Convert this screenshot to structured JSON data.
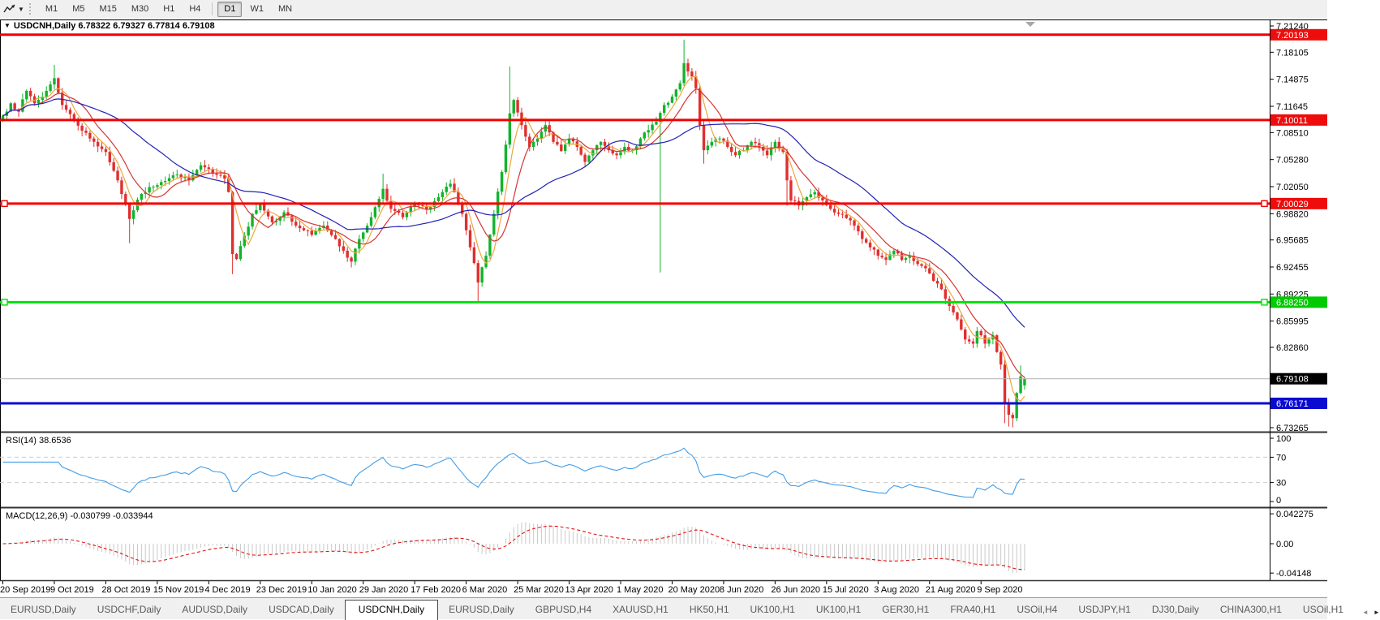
{
  "toolbar": {
    "tool_icon": "chart-line-cursor",
    "timeframes": [
      {
        "label": "M1",
        "active": false
      },
      {
        "label": "M5",
        "active": false
      },
      {
        "label": "M15",
        "active": false
      },
      {
        "label": "M30",
        "active": false
      },
      {
        "label": "H1",
        "active": false
      },
      {
        "label": "H4",
        "active": false
      },
      {
        "label": "D1",
        "active": true
      },
      {
        "label": "W1",
        "active": false
      },
      {
        "label": "MN",
        "active": false
      }
    ]
  },
  "chart_title": {
    "display": "USDCNH,Daily  6.78322 6.79327 6.77814 6.79108",
    "symbol": "USDCNH",
    "period": "Daily",
    "open": "6.78322",
    "high": "6.79327",
    "low": "6.77814",
    "close": "6.79108"
  },
  "price_axis": {
    "ticks": [
      {
        "price": 7.2124,
        "label": "7.21240"
      },
      {
        "price": 7.18105,
        "label": "7.18105"
      },
      {
        "price": 7.14875,
        "label": "7.14875"
      },
      {
        "price": 7.11645,
        "label": "7.11645"
      },
      {
        "price": 7.0851,
        "label": "7.08510"
      },
      {
        "price": 7.0528,
        "label": "7.05280"
      },
      {
        "price": 7.0205,
        "label": "7.02050"
      },
      {
        "price": 6.9882,
        "label": "6.98820"
      },
      {
        "price": 6.95685,
        "label": "6.95685"
      },
      {
        "price": 6.92455,
        "label": "6.92455"
      },
      {
        "price": 6.89225,
        "label": "6.89225"
      },
      {
        "price": 6.85995,
        "label": "6.85995"
      },
      {
        "price": 6.8286,
        "label": "6.82860"
      },
      {
        "price": 6.73265,
        "label": "6.73265"
      }
    ],
    "boxes": [
      {
        "label": "7.20193",
        "price": 7.20193,
        "bg": "#ee0c0c",
        "fg": "#ffffff"
      },
      {
        "label": "7.10011",
        "price": 7.10011,
        "bg": "#ee0c0c",
        "fg": "#ffffff"
      },
      {
        "label": "7.00029",
        "price": 7.00029,
        "bg": "#ee0c0c",
        "fg": "#ffffff"
      },
      {
        "label": "6.88250",
        "price": 6.8825,
        "bg": "#00ca00",
        "fg": "#ffffff"
      },
      {
        "label": "6.79108",
        "price": 6.79108,
        "bg": "#000000",
        "fg": "#ffffff"
      },
      {
        "label": "6.76171",
        "price": 6.76171,
        "bg": "#0b0bd0",
        "fg": "#ffffff"
      }
    ]
  },
  "hlines": [
    {
      "price": 7.20193,
      "color": "#f20000",
      "width": 3,
      "marker": false
    },
    {
      "price": 7.10011,
      "color": "#f20000",
      "width": 3,
      "marker": false
    },
    {
      "price": 7.00029,
      "color": "#f20000",
      "width": 3,
      "marker": true
    },
    {
      "price": 6.8825,
      "color": "#00e20a",
      "width": 3,
      "marker": true
    },
    {
      "price": 6.76171,
      "color": "#0b0bd0",
      "width": 3,
      "marker": false
    }
  ],
  "current_price_line": {
    "price": 6.79108,
    "color": "#b4b4b4"
  },
  "indicators": {
    "rsi": {
      "display": "RSI(14) 38.6536",
      "name": "RSI",
      "period": "14",
      "value": "38.6536",
      "levels": [
        100,
        70,
        30,
        0
      ],
      "level_labels": [
        "100",
        "70",
        "30",
        "0"
      ],
      "dashed_levels": [
        70,
        30
      ],
      "color": "#419de8"
    },
    "macd": {
      "display": "MACD(12,26,9) -0.030799 -0.033944",
      "params": "12,26,9",
      "main_value": "-0.030799",
      "signal_value": "-0.033944",
      "axis_labels": [
        "0.042275",
        "0.00",
        "-0.04148"
      ],
      "axis_values": [
        0.042275,
        0.0,
        -0.04148
      ],
      "histogram_color": "#c9c9c9",
      "signal_color": "#e01414"
    }
  },
  "dates": [
    "20 Sep 2019",
    "9 Oct 2019",
    "28 Oct 2019",
    "15 Nov 2019",
    "4 Dec 2019",
    "23 Dec 2019",
    "10 Jan 2020",
    "29 Jan 2020",
    "17 Feb 2020",
    "6 Mar 2020",
    "25 Mar 2020",
    "13 Apr 2020",
    "1 May 2020",
    "20 May 2020",
    "8 Jun 2020",
    "26 Jun 2020",
    "15 Jul 2020",
    "3 Aug 2020",
    "21 Aug 2020",
    "9 Sep 2020"
  ],
  "tabs": {
    "items": [
      {
        "label": "EURUSD,Daily",
        "active": false
      },
      {
        "label": "USDCHF,Daily",
        "active": false
      },
      {
        "label": "AUDUSD,Daily",
        "active": false
      },
      {
        "label": "USDCAD,Daily",
        "active": false
      },
      {
        "label": "USDCNH,Daily",
        "active": true
      },
      {
        "label": "EURUSD,Daily",
        "active": false
      },
      {
        "label": "GBPUSD,H4",
        "active": false
      },
      {
        "label": "XAUUSD,H1",
        "active": false
      },
      {
        "label": "HK50,H1",
        "active": false
      },
      {
        "label": "UK100,H1",
        "active": false
      },
      {
        "label": "UK100,H1",
        "active": false
      },
      {
        "label": "GER30,H1",
        "active": false
      },
      {
        "label": "FRA40,H1",
        "active": false
      },
      {
        "label": "USOil,H4",
        "active": false
      },
      {
        "label": "USDJPY,H1",
        "active": false
      },
      {
        "label": "DJ30,Daily",
        "active": false
      },
      {
        "label": "CHINA300,H1",
        "active": false
      },
      {
        "label": "USOil,H1",
        "active": false
      }
    ],
    "nav": {
      "left": "◄",
      "right": "►"
    }
  },
  "chart_data": {
    "type": "candlestick",
    "symbol": "USDCNH",
    "timeframe": "Daily",
    "visible_range": {
      "first_date": "20 Sep 2019",
      "price_min": 6.73265,
      "price_max": 7.2124
    },
    "candle_count": 259,
    "bull_color": "#12b32c",
    "bear_color": "#e02f2f",
    "close_anchors": [
      [
        0,
        7.105
      ],
      [
        2,
        7.12
      ],
      [
        4,
        7.11
      ],
      [
        6,
        7.135
      ],
      [
        8,
        7.12
      ],
      [
        10,
        7.128
      ],
      [
        13,
        7.15
      ],
      [
        15,
        7.118
      ],
      [
        18,
        7.1
      ],
      [
        22,
        7.078
      ],
      [
        26,
        7.062
      ],
      [
        29,
        7.028
      ],
      [
        32,
        6.982
      ],
      [
        34,
        7.005
      ],
      [
        37,
        7.02
      ],
      [
        40,
        7.026
      ],
      [
        44,
        7.035
      ],
      [
        47,
        7.028
      ],
      [
        50,
        7.046
      ],
      [
        53,
        7.036
      ],
      [
        56,
        7.03
      ],
      [
        57,
        7.014
      ],
      [
        58,
        6.94
      ],
      [
        59,
        6.934
      ],
      [
        61,
        6.962
      ],
      [
        63,
        6.988
      ],
      [
        65,
        7.0
      ],
      [
        68,
        6.978
      ],
      [
        71,
        6.99
      ],
      [
        74,
        6.974
      ],
      [
        78,
        6.963
      ],
      [
        81,
        6.974
      ],
      [
        84,
        6.958
      ],
      [
        86,
        6.944
      ],
      [
        88,
        6.931
      ],
      [
        90,
        6.958
      ],
      [
        93,
        6.984
      ],
      [
        96,
        7.018
      ],
      [
        98,
        6.994
      ],
      [
        101,
        6.984
      ],
      [
        104,
        7.0
      ],
      [
        107,
        6.993
      ],
      [
        110,
        7.008
      ],
      [
        113,
        7.024
      ],
      [
        116,
        6.988
      ],
      [
        118,
        6.948
      ],
      [
        120,
        6.906
      ],
      [
        122,
        6.938
      ],
      [
        124,
        6.988
      ],
      [
        126,
        7.038
      ],
      [
        128,
        7.108
      ],
      [
        129,
        7.124
      ],
      [
        131,
        7.094
      ],
      [
        133,
        7.068
      ],
      [
        135,
        7.078
      ],
      [
        137,
        7.094
      ],
      [
        139,
        7.074
      ],
      [
        141,
        7.063
      ],
      [
        143,
        7.078
      ],
      [
        145,
        7.068
      ],
      [
        147,
        7.05
      ],
      [
        149,
        7.064
      ],
      [
        151,
        7.074
      ],
      [
        153,
        7.064
      ],
      [
        155,
        7.058
      ],
      [
        157,
        7.068
      ],
      [
        159,
        7.064
      ],
      [
        161,
        7.078
      ],
      [
        163,
        7.088
      ],
      [
        165,
        7.098
      ],
      [
        167,
        7.118
      ],
      [
        169,
        7.128
      ],
      [
        171,
        7.144
      ],
      [
        172,
        7.168
      ],
      [
        173,
        7.158
      ],
      [
        174,
        7.152
      ],
      [
        175,
        7.138
      ],
      [
        176,
        7.094
      ],
      [
        177,
        7.064
      ],
      [
        179,
        7.074
      ],
      [
        181,
        7.078
      ],
      [
        183,
        7.068
      ],
      [
        185,
        7.058
      ],
      [
        187,
        7.064
      ],
      [
        189,
        7.074
      ],
      [
        191,
        7.068
      ],
      [
        193,
        7.058
      ],
      [
        195,
        7.074
      ],
      [
        197,
        7.062
      ],
      [
        198,
        7.028
      ],
      [
        199,
        7.004
      ],
      [
        201,
        6.998
      ],
      [
        203,
        7.008
      ],
      [
        205,
        7.014
      ],
      [
        207,
        7.004
      ],
      [
        209,
        6.994
      ],
      [
        211,
        6.988
      ],
      [
        213,
        6.983
      ],
      [
        215,
        6.974
      ],
      [
        217,
        6.958
      ],
      [
        219,
        6.948
      ],
      [
        221,
        6.938
      ],
      [
        223,
        6.933
      ],
      [
        225,
        6.944
      ],
      [
        227,
        6.933
      ],
      [
        229,
        6.938
      ],
      [
        231,
        6.928
      ],
      [
        233,
        6.923
      ],
      [
        235,
        6.908
      ],
      [
        237,
        6.898
      ],
      [
        239,
        6.878
      ],
      [
        241,
        6.862
      ],
      [
        243,
        6.838
      ],
      [
        245,
        6.833
      ],
      [
        246,
        6.848
      ],
      [
        247,
        6.843
      ],
      [
        248,
        6.833
      ],
      [
        249,
        6.838
      ],
      [
        250,
        6.843
      ],
      [
        251,
        6.823
      ],
      [
        252,
        6.808
      ],
      [
        253,
        6.762
      ],
      [
        254,
        6.748
      ],
      [
        255,
        6.744
      ],
      [
        256,
        6.774
      ],
      [
        257,
        6.794
      ],
      [
        258,
        6.79108
      ]
    ],
    "wick_overrides": [
      [
        13,
        7.166,
        null
      ],
      [
        32,
        null,
        6.953
      ],
      [
        58,
        null,
        6.916
      ],
      [
        88,
        null,
        6.924
      ],
      [
        96,
        7.036,
        null
      ],
      [
        120,
        null,
        6.884
      ],
      [
        128,
        7.164,
        null
      ],
      [
        166,
        null,
        6.918
      ],
      [
        172,
        7.196,
        null
      ],
      [
        177,
        null,
        7.048
      ],
      [
        198,
        null,
        6.998
      ],
      [
        253,
        null,
        6.738
      ],
      [
        254,
        null,
        6.734
      ],
      [
        255,
        null,
        6.733
      ],
      [
        257,
        6.807,
        null
      ]
    ],
    "moving_averages": [
      {
        "period": 5,
        "color": "#eda63b",
        "name": "ma-fast"
      },
      {
        "period": 10,
        "color": "#d63333",
        "name": "ma-medium"
      },
      {
        "period": 30,
        "color": "#2121b5",
        "name": "ma-slow"
      }
    ],
    "noise_seed": 7
  }
}
